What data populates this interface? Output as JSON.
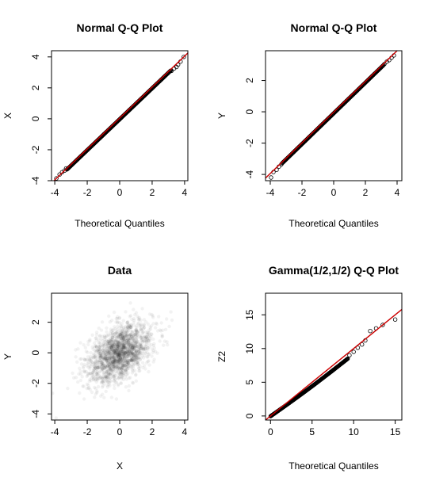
{
  "chart_data": [
    {
      "type": "scatter",
      "title": "Normal Q-Q Plot",
      "xlabel": "Theoretical Quantiles",
      "ylabel": "X",
      "xlim": [
        -4.2,
        4.2
      ],
      "ylim": [
        -4.0,
        4.4
      ],
      "xticks": [
        -4,
        -2,
        0,
        2,
        4
      ],
      "yticks": [
        -4,
        -2,
        0,
        2,
        4
      ],
      "tail_points": [
        [
          -3.9,
          -3.85
        ],
        [
          -3.7,
          -3.6
        ],
        [
          -3.55,
          -3.45
        ],
        [
          -3.4,
          -3.35
        ],
        [
          -3.3,
          -3.2
        ],
        [
          3.2,
          3.1
        ],
        [
          3.35,
          3.25
        ],
        [
          3.5,
          3.35
        ],
        [
          3.6,
          3.5
        ],
        [
          3.75,
          3.7
        ],
        [
          3.95,
          4.0
        ]
      ],
      "reference_line": {
        "slope": 1.0,
        "intercept": 0.05
      }
    },
    {
      "type": "scatter",
      "title": "Normal Q-Q Plot",
      "xlabel": "Theoretical Quantiles",
      "ylabel": "Y",
      "xlim": [
        -4.3,
        4.3
      ],
      "ylim": [
        -4.4,
        3.9
      ],
      "xticks": [
        -4,
        -2,
        0,
        2,
        4
      ],
      "yticks": [
        -4,
        -2,
        0,
        2
      ],
      "tail_points": [
        [
          -3.95,
          -4.2
        ],
        [
          -3.8,
          -3.85
        ],
        [
          -3.6,
          -3.7
        ],
        [
          -3.45,
          -3.5
        ],
        [
          -3.3,
          -3.35
        ],
        [
          3.2,
          3.05
        ],
        [
          3.35,
          3.2
        ],
        [
          3.5,
          3.3
        ],
        [
          3.65,
          3.45
        ],
        [
          3.8,
          3.6
        ]
      ],
      "reference_line": {
        "slope": 0.98,
        "intercept": -0.02
      }
    },
    {
      "type": "scatter",
      "title": "Data",
      "xlabel": "X",
      "ylabel": "Y",
      "xlim": [
        -4.2,
        4.2
      ],
      "ylim": [
        -4.4,
        3.9
      ],
      "xticks": [
        -4,
        -2,
        0,
        2,
        4
      ],
      "yticks": [
        -4,
        -2,
        0,
        2
      ],
      "correlation": 0.45
    },
    {
      "type": "scatter",
      "title": "Gamma(1/2,1/2) Q-Q Plot",
      "xlabel": "Theoretical Quantiles",
      "ylabel": "Z2",
      "xlim": [
        -0.6,
        15.8
      ],
      "ylim": [
        -0.6,
        18.2
      ],
      "xticks": [
        0,
        5,
        10,
        15
      ],
      "yticks": [
        0,
        5,
        10,
        15
      ],
      "tail_points": [
        [
          9.5,
          9.0
        ],
        [
          10.0,
          9.5
        ],
        [
          10.5,
          10.1
        ],
        [
          11.0,
          10.6
        ],
        [
          11.4,
          11.2
        ],
        [
          12.0,
          12.6
        ],
        [
          12.7,
          13.0
        ],
        [
          13.5,
          13.5
        ],
        [
          15.0,
          14.3
        ]
      ],
      "reference_line": {
        "slope": 1.0,
        "intercept": 0.0
      }
    }
  ]
}
